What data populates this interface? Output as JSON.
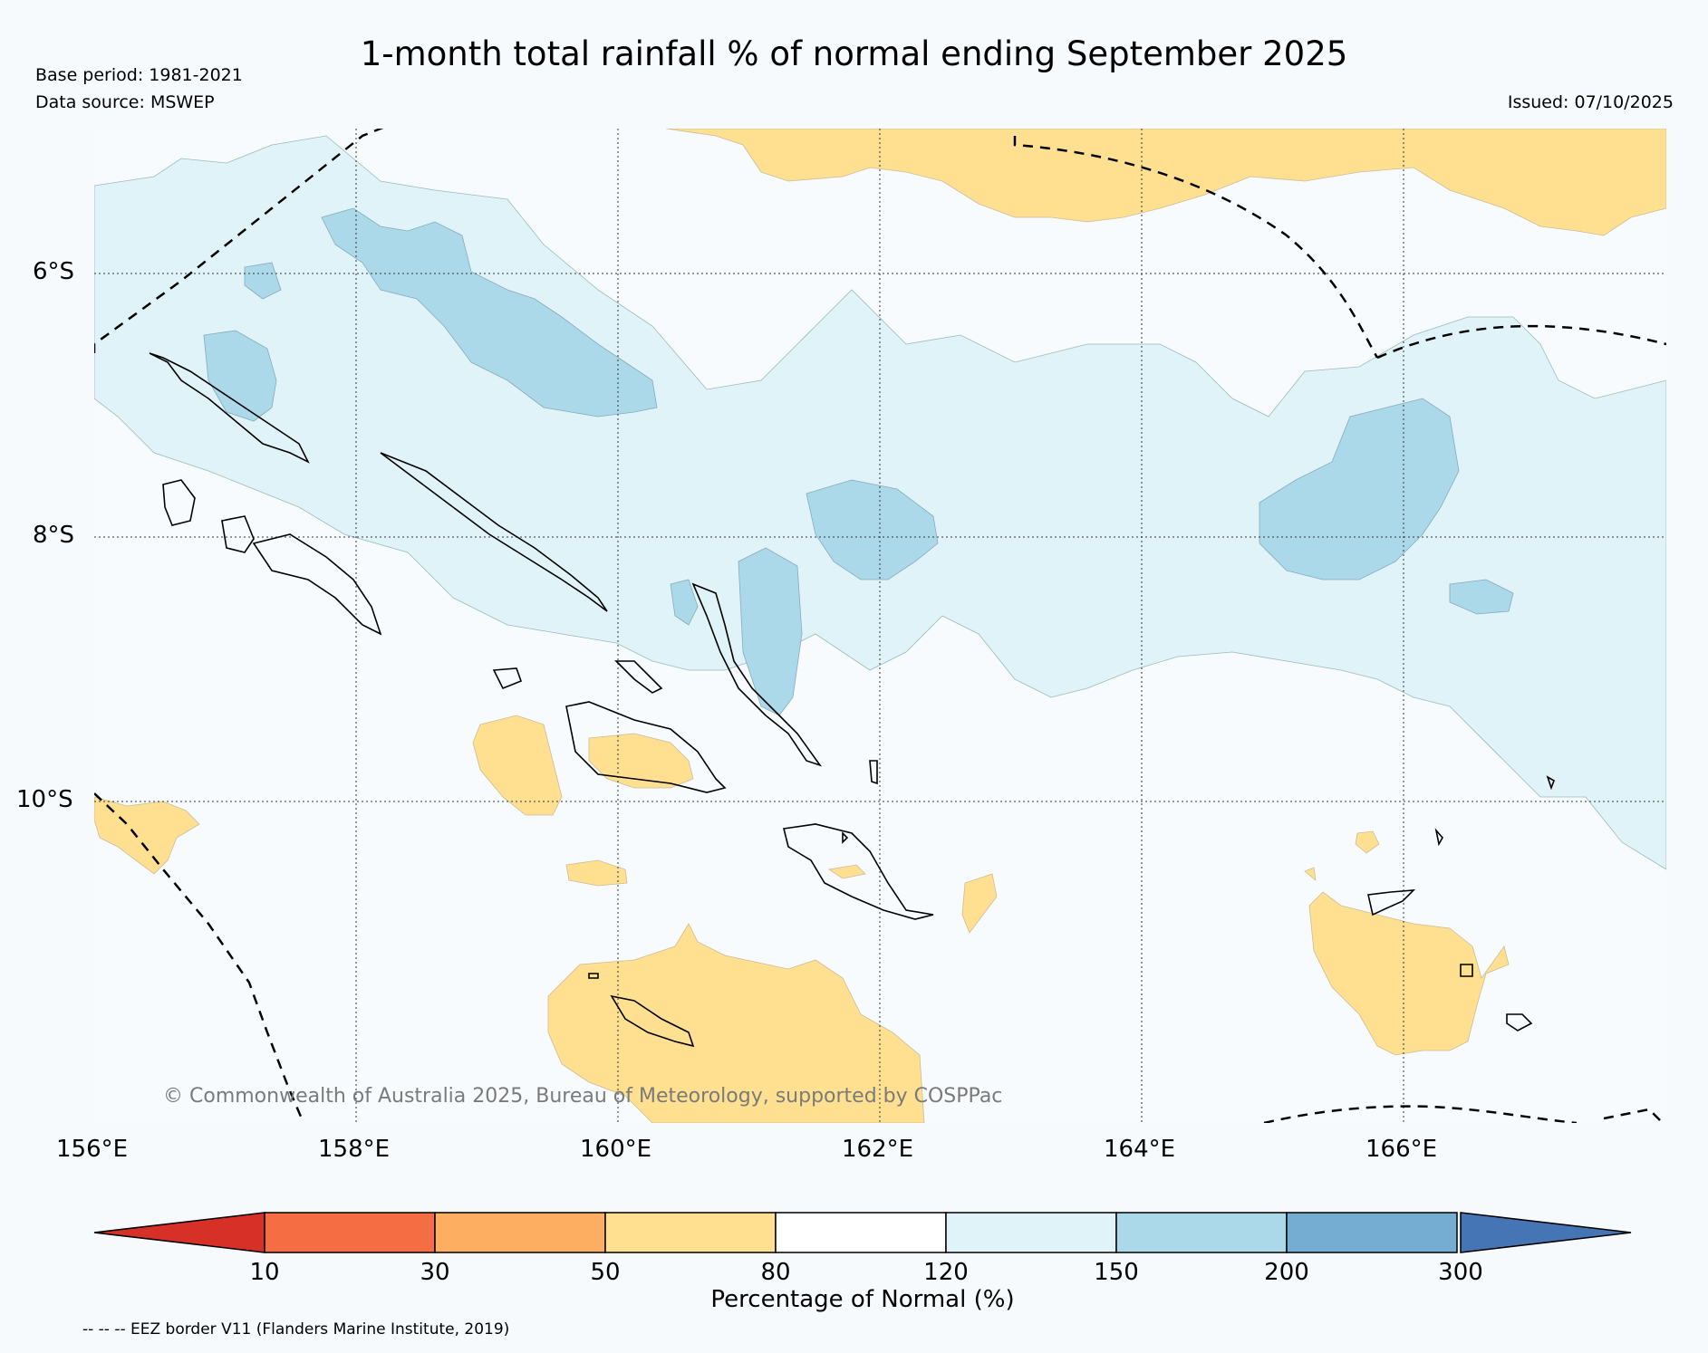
{
  "title": "1-month total rainfall % of normal ending September 2025",
  "meta": {
    "base_period": "Base period: 1981-2021",
    "data_source": "Data source: MSWEP",
    "issued": "Issued: 07/10/2025"
  },
  "axes": {
    "lat_labels": [
      "6°S",
      "8°S",
      "10°S"
    ],
    "lon_labels": [
      "156°E",
      "158°E",
      "160°E",
      "162°E",
      "164°E",
      "166°E"
    ]
  },
  "copyright": "© Commonwealth of Australia 2025, Bureau of Meteorology, supported by COSPPac",
  "colorbar": {
    "label": "Percentage of Normal (%)",
    "ticks": [
      "10",
      "30",
      "50",
      "80",
      "120",
      "150",
      "200",
      "300"
    ],
    "colors": [
      "#d73027",
      "#f46d43",
      "#fdae61",
      "#fee090",
      "#ffffff",
      "#e0f3f8",
      "#abd9e9",
      "#74add1",
      "#4575b4"
    ]
  },
  "legend_note": "-- -- -- EEZ border V11 (Flanders Marine Institute, 2019)",
  "map_colors": {
    "dry": "#fee090",
    "normal": "#f7fbfd",
    "wet1": "#e0f3f8",
    "wet2": "#abd9e9"
  }
}
